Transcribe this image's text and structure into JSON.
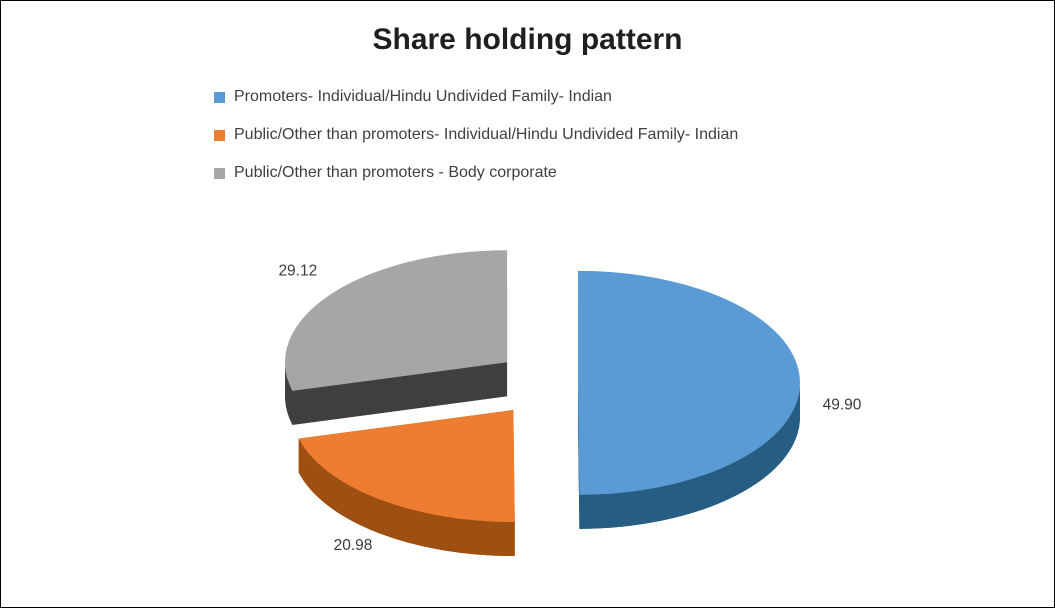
{
  "chart_data": {
    "type": "pie",
    "style": "3d-exploded",
    "title": "Share holding pattern",
    "legend_position": "top-left",
    "direction": "clockwise",
    "start_angle_deg": 0,
    "categories": [
      "Promoters- Individual/Hindu Undivided Family- Indian",
      "Public/Other than promoters- Individual/Hindu Undivided Family- Indian",
      "Public/Other than promoters - Body corporate"
    ],
    "values": [
      49.9,
      20.98,
      29.12
    ],
    "data_labels": [
      "49.90",
      "20.98",
      "29.12"
    ],
    "colors": [
      "#5B9BD5",
      "#ED7D31",
      "#A6A6A6"
    ],
    "side_colors": [
      "#255E82",
      "#9E5012",
      "#3F3F3F"
    ],
    "label_color": "#3B3B3B",
    "title_color": "#1F1F1F",
    "legend_text_color": "#3F3F3F",
    "background": "#FFFFFF",
    "border_color": "#000000"
  }
}
